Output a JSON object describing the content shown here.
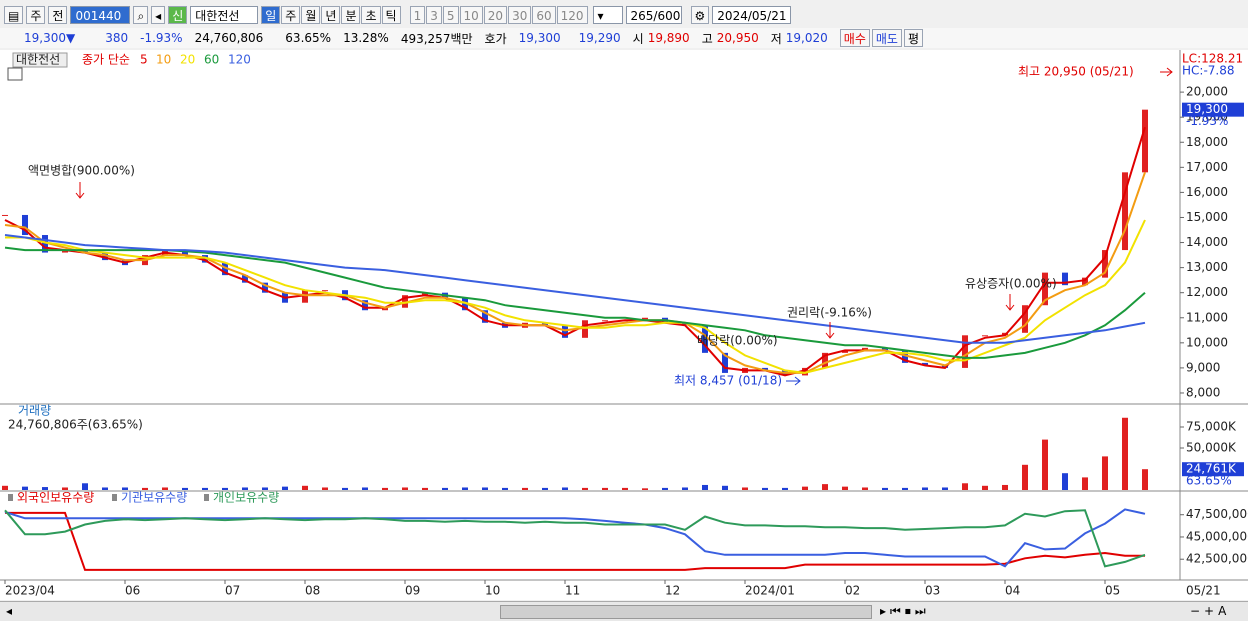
{
  "toolbar": {
    "market": "주",
    "prev": "전",
    "code": "001440",
    "name": "대한전선",
    "new_badge": "신",
    "periods": [
      "일",
      "주",
      "월",
      "년",
      "분",
      "초",
      "틱"
    ],
    "intervals": [
      "1",
      "3",
      "5",
      "10",
      "20",
      "30",
      "60",
      "120"
    ],
    "count": "265/600",
    "date": "2024/05/21"
  },
  "info_bar": {
    "price": "19,300▼",
    "change": "380",
    "change_rate": "-1.93%",
    "volume": "24,760,806",
    "volume_rate": "63.65%",
    "turnover": "13.28%",
    "amount": "493,257백만",
    "quote_label": "호가",
    "ask": "19,300",
    "bid": "19,290",
    "open_label": "시",
    "open": "19,890",
    "high_label": "고",
    "high": "20,950",
    "low_label": "저",
    "low": "19,020",
    "buy": "매수",
    "sell": "매도",
    "eval": "평"
  },
  "chart_data": [
    {
      "type": "candle",
      "name": "대한전선",
      "ma_label": "종가 단순",
      "up_color": "#e02020",
      "down_color": "#1f3fd6",
      "close": {
        "values": [
          15100,
          14300,
          13600,
          13700,
          13600,
          13300,
          13100,
          13500,
          13700,
          13500,
          13200,
          12700,
          12400,
          12000,
          11600,
          12100,
          12100,
          11700,
          11300,
          11400,
          11900,
          12000,
          11800,
          11300,
          10800,
          10600,
          10800,
          10700,
          10200,
          10900,
          10900,
          10900,
          11000,
          10800,
          10700,
          9600,
          8800,
          9000,
          8900,
          8700,
          9000,
          9600,
          9700,
          9800,
          9700,
          9200,
          9100,
          9000,
          10300,
          10300,
          10400,
          11500,
          12800,
          12300,
          12600,
          13700,
          16800,
          19300
        ]
      },
      "series": [
        {
          "name": "5",
          "color": "#e00000",
          "values": [
            14900,
            14500,
            13800,
            13700,
            13600,
            13400,
            13200,
            13400,
            13600,
            13500,
            13300,
            12800,
            12500,
            12100,
            11800,
            11900,
            12000,
            11800,
            11400,
            11400,
            11800,
            11900,
            11800,
            11400,
            10900,
            10700,
            10700,
            10700,
            10300,
            10700,
            10800,
            10900,
            10900,
            10800,
            10700,
            9900,
            9000,
            8900,
            8900,
            8700,
            8900,
            9500,
            9700,
            9700,
            9700,
            9300,
            9100,
            9000,
            9900,
            10200,
            10300,
            11200,
            12400,
            12400,
            12500,
            13400,
            16000,
            18600
          ]
        },
        {
          "name": "10",
          "color": "#f39c12",
          "values": [
            14700,
            14600,
            14000,
            13800,
            13600,
            13500,
            13300,
            13300,
            13500,
            13500,
            13400,
            13000,
            12700,
            12300,
            12000,
            11900,
            11900,
            11900,
            11600,
            11400,
            11600,
            11800,
            11800,
            11600,
            11200,
            10800,
            10700,
            10700,
            10500,
            10600,
            10700,
            10800,
            10900,
            10900,
            10800,
            10300,
            9500,
            9100,
            8900,
            8800,
            8800,
            9200,
            9500,
            9700,
            9700,
            9500,
            9300,
            9100,
            9500,
            10000,
            10200,
            10700,
            11700,
            12100,
            12300,
            12800,
            14500,
            16800
          ]
        },
        {
          "name": "20",
          "color": "#f2e200",
          "values": [
            14200,
            14200,
            14000,
            13900,
            13700,
            13600,
            13500,
            13400,
            13400,
            13400,
            13400,
            13200,
            12900,
            12600,
            12300,
            12100,
            12000,
            11900,
            11800,
            11600,
            11600,
            11700,
            11700,
            11600,
            11400,
            11100,
            10900,
            10800,
            10700,
            10600,
            10600,
            10700,
            10700,
            10800,
            10800,
            10600,
            10000,
            9500,
            9200,
            8900,
            8800,
            9000,
            9200,
            9400,
            9600,
            9600,
            9500,
            9300,
            9300,
            9600,
            9900,
            10200,
            10900,
            11400,
            11900,
            12300,
            13200,
            14900
          ]
        },
        {
          "name": "60",
          "color": "#1a9a3c",
          "values": [
            13800,
            13700,
            13700,
            13700,
            13700,
            13700,
            13700,
            13700,
            13700,
            13650,
            13600,
            13500,
            13400,
            13300,
            13200,
            13000,
            12800,
            12600,
            12400,
            12200,
            12100,
            12000,
            11900,
            11800,
            11700,
            11500,
            11400,
            11300,
            11200,
            11100,
            11000,
            11000,
            10900,
            10900,
            10800,
            10700,
            10600,
            10500,
            10300,
            10200,
            10100,
            10000,
            9900,
            9900,
            9800,
            9700,
            9600,
            9500,
            9400,
            9400,
            9500,
            9600,
            9800,
            10000,
            10300,
            10700,
            11300,
            12000
          ]
        },
        {
          "name": "120",
          "color": "#3a5fe0",
          "values": [
            14300,
            14200,
            14100,
            14000,
            13900,
            13850,
            13800,
            13750,
            13700,
            13700,
            13650,
            13600,
            13500,
            13400,
            13300,
            13200,
            13100,
            13000,
            12950,
            12900,
            12800,
            12700,
            12600,
            12500,
            12400,
            12300,
            12200,
            12100,
            12000,
            11900,
            11800,
            11700,
            11600,
            11500,
            11400,
            11300,
            11200,
            11100,
            11000,
            10900,
            10800,
            10700,
            10600,
            10500,
            10400,
            10300,
            10200,
            10100,
            10000,
            10000,
            10000,
            10100,
            10200,
            10300,
            10400,
            10500,
            10650,
            10800
          ]
        }
      ],
      "ylim": [
        7640,
        21600
      ],
      "yticks": [
        {
          "value": 8000,
          "label": "8,000"
        },
        {
          "value": 9000,
          "label": "9,000"
        },
        {
          "value": 10000,
          "label": "10,000"
        },
        {
          "value": 11000,
          "label": "11,000"
        },
        {
          "value": 12000,
          "label": "12,000"
        },
        {
          "value": 13000,
          "label": "13,000"
        },
        {
          "value": 14000,
          "label": "14,000"
        },
        {
          "value": 15000,
          "label": "15,000"
        },
        {
          "value": 16000,
          "label": "16,000"
        },
        {
          "value": 17000,
          "label": "17,000"
        },
        {
          "value": 18000,
          "label": "18,000"
        },
        {
          "value": 19000,
          "label": "19,000"
        },
        {
          "value": 20000,
          "label": "20,000"
        }
      ],
      "last": {
        "value": 19300,
        "label": "19,300"
      },
      "last_change": "-1.93%",
      "lc": "LC:128.21",
      "hc": "HC:-7.88",
      "annotations": {
        "split": "액면병합(900.00%)",
        "high": "최고 20,950 (05/21)",
        "low": "최저 8,457 (01/18)",
        "rights": "권리락(-9.16%)",
        "dividend": "배당락(0.00%)",
        "offering": "유상증자(0.00%)"
      }
    },
    {
      "type": "bar",
      "title": "거래량",
      "subtitle": "24,760,806주(63.65%)",
      "values": [
        5000,
        4000,
        3500,
        3000,
        8000,
        3000,
        3000,
        2500,
        3000,
        2500,
        2500,
        2500,
        3000,
        3000,
        4000,
        5000,
        3000,
        2500,
        3000,
        2500,
        3000,
        2500,
        2500,
        3000,
        3000,
        2500,
        2500,
        2500,
        3000,
        2500,
        2500,
        2500,
        2000,
        2500,
        3000,
        6000,
        5000,
        3000,
        2500,
        2500,
        4000,
        7000,
        4000,
        3000,
        2500,
        2500,
        3000,
        3000,
        8000,
        5000,
        6000,
        30000,
        60000,
        20000,
        15000,
        40000,
        86000,
        24761
      ],
      "ylim": [
        0,
        100000
      ],
      "yticks": [
        {
          "value": 50000,
          "label": "50,000K"
        },
        {
          "value": 75000,
          "label": "75,000K"
        }
      ],
      "last": {
        "value": 24761,
        "label": "24,761K"
      },
      "last_rate": "63.65%"
    },
    {
      "type": "line",
      "categories": [
        "2023/04",
        null,
        null,
        null,
        null,
        null,
        "06",
        null,
        null,
        null,
        null,
        "07",
        null,
        null,
        null,
        "08",
        null,
        null,
        null,
        null,
        "09",
        null,
        null,
        null,
        "10",
        null,
        null,
        null,
        "11",
        null,
        null,
        null,
        null,
        "12",
        null,
        null,
        null,
        "2024/01",
        null,
        null,
        null,
        null,
        "02",
        null,
        null,
        null,
        "03",
        null,
        null,
        null,
        "04",
        null,
        null,
        null,
        null,
        "05",
        null,
        null
      ],
      "last_date": "05/21",
      "series": [
        {
          "name": "외국인보유수량",
          "color": "#e00000",
          "values": [
            47700000,
            47700000,
            47700000,
            47700000,
            41300000,
            41300000,
            41300000,
            41300000,
            41300000,
            41300000,
            41300000,
            41300000,
            41300000,
            41300000,
            41300000,
            41300000,
            41300000,
            41300000,
            41300000,
            41300000,
            41300000,
            41300000,
            41300000,
            41300000,
            41300000,
            41300000,
            41300000,
            41300000,
            41300000,
            41300000,
            41300000,
            41300000,
            41300000,
            41300000,
            41300000,
            41500000,
            41500000,
            41500000,
            41500000,
            41500000,
            41900000,
            41900000,
            41900000,
            41900000,
            41900000,
            41900000,
            41900000,
            41900000,
            41900000,
            41900000,
            42000000,
            42600000,
            42900000,
            42700000,
            43000000,
            43200000,
            42900000,
            42900000
          ]
        },
        {
          "name": "기관보유수량",
          "color": "#3a5fe0",
          "values": [
            47800000,
            47100000,
            47100000,
            47100000,
            47100000,
            47100000,
            47100000,
            47100000,
            47100000,
            47100000,
            47100000,
            47100000,
            47100000,
            47100000,
            47100000,
            47100000,
            47100000,
            47100000,
            47100000,
            47100000,
            47100000,
            47100000,
            47100000,
            47100000,
            47100000,
            47100000,
            47100000,
            47100000,
            47100000,
            47000000,
            46800000,
            46600000,
            46400000,
            46000000,
            45300000,
            43400000,
            43000000,
            43000000,
            43000000,
            43000000,
            43000000,
            43000000,
            43200000,
            43200000,
            43000000,
            42800000,
            42800000,
            42800000,
            42800000,
            42800000,
            41700000,
            44300000,
            43600000,
            43700000,
            45400000,
            46500000,
            48100000,
            47600000
          ]
        },
        {
          "name": "개인보유수량",
          "color": "#2e9a5a",
          "values": [
            48000000,
            45300000,
            45300000,
            45600000,
            46400000,
            46800000,
            47000000,
            46900000,
            47000000,
            47100000,
            47000000,
            46900000,
            47000000,
            47100000,
            47000000,
            46900000,
            47000000,
            47000000,
            47100000,
            47000000,
            46800000,
            46800000,
            46700000,
            46800000,
            46700000,
            46700000,
            46600000,
            46700000,
            46600000,
            46600000,
            46400000,
            46400000,
            46400000,
            46400000,
            45800000,
            47300000,
            46600000,
            46300000,
            46300000,
            46200000,
            46200000,
            46100000,
            46100000,
            46000000,
            46000000,
            45800000,
            45900000,
            46000000,
            46100000,
            46100000,
            46300000,
            47600000,
            47300000,
            47900000,
            48000000,
            41700000,
            42200000,
            43000000
          ]
        }
      ],
      "ylim": [
        40390000,
        49940000
      ],
      "yticks": [
        {
          "value": 42500000,
          "label": "42,500,000"
        },
        {
          "value": 45000000,
          "label": "45,000,000"
        },
        {
          "value": 47500000,
          "label": "47,500,000"
        }
      ]
    }
  ]
}
